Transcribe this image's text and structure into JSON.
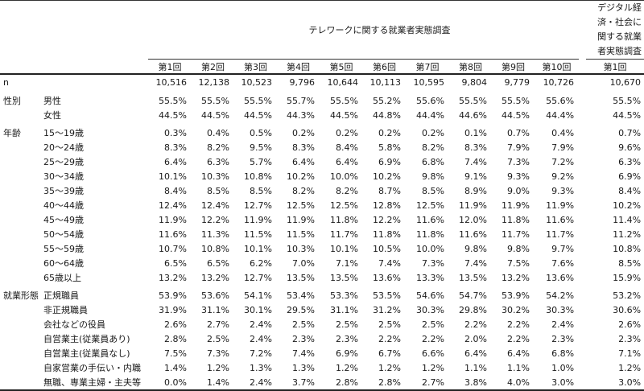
{
  "header": {
    "group1_title": "テレワークに関する就業者実態調査",
    "group2_title": "デジタル経済・社会に関する就業者実態調査",
    "rounds": [
      "第1回",
      "第2回",
      "第3回",
      "第4回",
      "第5回",
      "第6回",
      "第7回",
      "第8回",
      "第9回",
      "第10回"
    ],
    "group2_round": "第1回"
  },
  "n_row": {
    "label": "n",
    "values": [
      "10,516",
      "12,138",
      "10,523",
      "9,796",
      "10,644",
      "10,113",
      "10,595",
      "9,804",
      "9,779",
      "10,726"
    ],
    "digital": "10,670"
  },
  "sections": [
    {
      "category": "性別",
      "rows": [
        {
          "label": "男性",
          "values": [
            "55.5%",
            "55.5%",
            "55.5%",
            "55.7%",
            "55.5%",
            "55.2%",
            "55.6%",
            "55.5%",
            "55.5%",
            "55.6%"
          ],
          "digital": "55.5%"
        },
        {
          "label": "女性",
          "values": [
            "44.5%",
            "44.5%",
            "44.5%",
            "44.3%",
            "44.5%",
            "44.8%",
            "44.4%",
            "44.6%",
            "44.5%",
            "44.4%"
          ],
          "digital": "44.5%"
        }
      ]
    },
    {
      "category": "年齢",
      "rows": [
        {
          "label": "15～19歳",
          "values": [
            "0.3%",
            "0.4%",
            "0.5%",
            "0.2%",
            "0.2%",
            "0.2%",
            "0.2%",
            "0.1%",
            "0.7%",
            "0.4%"
          ],
          "digital": "0.7%"
        },
        {
          "label": "20～24歳",
          "values": [
            "8.3%",
            "8.2%",
            "9.5%",
            "8.3%",
            "8.4%",
            "5.8%",
            "8.2%",
            "8.3%",
            "7.9%",
            "7.9%"
          ],
          "digital": "9.6%"
        },
        {
          "label": "25～29歳",
          "values": [
            "6.4%",
            "6.3%",
            "5.7%",
            "6.4%",
            "6.4%",
            "6.9%",
            "6.8%",
            "7.4%",
            "7.3%",
            "7.2%"
          ],
          "digital": "6.3%"
        },
        {
          "label": "30～34歳",
          "values": [
            "10.1%",
            "10.3%",
            "10.8%",
            "10.2%",
            "10.0%",
            "10.2%",
            "9.8%",
            "9.1%",
            "9.3%",
            "9.2%"
          ],
          "digital": "6.9%"
        },
        {
          "label": "35～39歳",
          "values": [
            "8.4%",
            "8.5%",
            "8.5%",
            "8.2%",
            "8.2%",
            "8.7%",
            "8.5%",
            "8.9%",
            "9.0%",
            "9.3%"
          ],
          "digital": "8.4%"
        },
        {
          "label": "40～44歳",
          "values": [
            "12.4%",
            "12.4%",
            "12.7%",
            "12.5%",
            "12.5%",
            "12.8%",
            "12.5%",
            "11.9%",
            "11.9%",
            "11.9%"
          ],
          "digital": "10.2%"
        },
        {
          "label": "45～49歳",
          "values": [
            "11.9%",
            "12.2%",
            "11.9%",
            "11.9%",
            "11.8%",
            "12.2%",
            "11.6%",
            "12.0%",
            "11.8%",
            "11.6%"
          ],
          "digital": "11.4%"
        },
        {
          "label": "50～54歳",
          "values": [
            "11.6%",
            "11.3%",
            "11.5%",
            "11.5%",
            "11.7%",
            "11.8%",
            "11.8%",
            "11.6%",
            "11.7%",
            "11.7%"
          ],
          "digital": "11.2%"
        },
        {
          "label": "55～59歳",
          "values": [
            "10.7%",
            "10.8%",
            "10.1%",
            "10.3%",
            "10.1%",
            "10.5%",
            "10.0%",
            "9.8%",
            "9.8%",
            "9.7%"
          ],
          "digital": "10.8%"
        },
        {
          "label": "60～64歳",
          "values": [
            "6.5%",
            "6.5%",
            "6.2%",
            "7.0%",
            "7.1%",
            "7.4%",
            "7.3%",
            "7.4%",
            "7.5%",
            "7.6%"
          ],
          "digital": "8.5%"
        },
        {
          "label": "65歳以上",
          "values": [
            "13.2%",
            "13.2%",
            "12.7%",
            "13.5%",
            "13.5%",
            "13.6%",
            "13.3%",
            "13.5%",
            "13.2%",
            "13.6%"
          ],
          "digital": "15.9%"
        }
      ]
    },
    {
      "category": "就業形態",
      "rows": [
        {
          "label": "正規職員",
          "values": [
            "53.9%",
            "53.6%",
            "54.1%",
            "53.4%",
            "53.3%",
            "53.5%",
            "54.6%",
            "54.7%",
            "53.9%",
            "54.2%"
          ],
          "digital": "53.2%"
        },
        {
          "label": "非正規職員",
          "values": [
            "31.9%",
            "31.1%",
            "30.1%",
            "29.5%",
            "31.1%",
            "31.2%",
            "30.3%",
            "29.8%",
            "30.2%",
            "30.3%"
          ],
          "digital": "30.6%"
        },
        {
          "label": "会社などの役員",
          "values": [
            "2.6%",
            "2.7%",
            "2.4%",
            "2.5%",
            "2.5%",
            "2.5%",
            "2.5%",
            "2.2%",
            "2.2%",
            "2.4%"
          ],
          "digital": "2.6%"
        },
        {
          "label": "自営業主(従業員あり)",
          "values": [
            "2.8%",
            "2.5%",
            "2.4%",
            "2.3%",
            "2.3%",
            "2.2%",
            "2.2%",
            "2.0%",
            "2.2%",
            "2.3%"
          ],
          "digital": "2.3%"
        },
        {
          "label": "自営業主(従業員なし)",
          "values": [
            "7.5%",
            "7.3%",
            "7.2%",
            "7.4%",
            "6.9%",
            "6.7%",
            "6.6%",
            "6.4%",
            "6.4%",
            "6.8%"
          ],
          "digital": "7.1%"
        },
        {
          "label": "自家営業の手伝い・内職",
          "values": [
            "1.4%",
            "1.2%",
            "1.3%",
            "1.3%",
            "1.2%",
            "1.2%",
            "1.2%",
            "1.1%",
            "1.1%",
            "1.0%"
          ],
          "digital": "1.2%"
        },
        {
          "label": "無職、専業主婦・主夫等",
          "values": [
            "0.0%",
            "1.4%",
            "2.4%",
            "3.7%",
            "2.8%",
            "2.8%",
            "2.7%",
            "3.8%",
            "4.0%",
            "3.0%"
          ],
          "digital": "3.0%"
        }
      ]
    }
  ]
}
